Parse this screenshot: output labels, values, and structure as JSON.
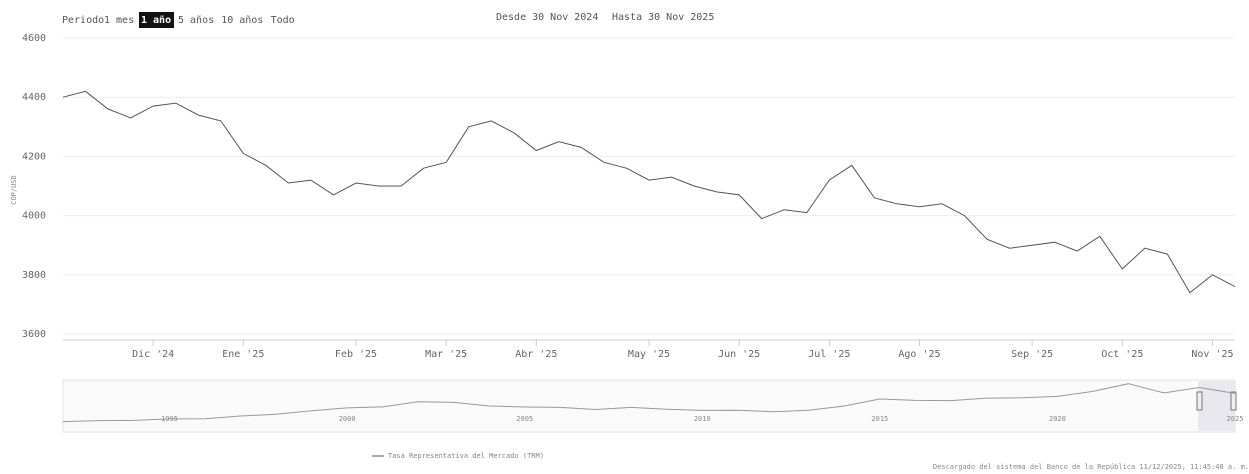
{
  "chart_data": {
    "type": "line",
    "period_label": "Periodo",
    "range_buttons": [
      "1 mes",
      "1 año",
      "5 años",
      "10 años",
      "Todo"
    ],
    "selected_button": 1,
    "from_label": "Desde 30 Nov 2024",
    "to_label": "Hasta 30 Nov 2025",
    "y_axis_label": "COP/USD",
    "ylim": [
      3600,
      4600
    ],
    "yticks": [
      3600,
      3800,
      4000,
      4200,
      4400,
      4600
    ],
    "grid": true,
    "categories": [
      null,
      null,
      null,
      null,
      "Dic '24",
      null,
      null,
      null,
      "Ene '25",
      null,
      null,
      null,
      null,
      "Feb '25",
      null,
      null,
      null,
      "Mar '25",
      null,
      null,
      null,
      "Abr '25",
      null,
      null,
      null,
      null,
      "May '25",
      null,
      null,
      null,
      "Jun '25",
      null,
      null,
      null,
      "Jul '25",
      null,
      null,
      null,
      "Ago '25",
      null,
      null,
      null,
      null,
      "Sep '25",
      null,
      null,
      null,
      "Oct '25",
      null,
      null,
      null,
      "Nov '25",
      null
    ],
    "series": [
      {
        "name": "Tasa Representativa del Mercado (TRM)",
        "color": "#555555",
        "values": [
          4400,
          4420,
          4360,
          4330,
          4370,
          4380,
          4340,
          4320,
          4210,
          4170,
          4110,
          4120,
          4070,
          4110,
          4100,
          4100,
          4160,
          4180,
          4300,
          4320,
          4280,
          4220,
          4250,
          4230,
          4180,
          4160,
          4120,
          4130,
          4100,
          4080,
          4070,
          3990,
          4020,
          4010,
          4120,
          4170,
          4060,
          4040,
          4030,
          4040,
          4000,
          3920,
          3890,
          3900,
          3910,
          3880,
          3930,
          3820,
          3890,
          3870,
          3740,
          3800,
          3760
        ]
      }
    ],
    "navigator": {
      "categories": [
        null,
        null,
        null,
        "1995",
        null,
        null,
        null,
        null,
        "2000",
        null,
        null,
        null,
        null,
        "2005",
        null,
        null,
        null,
        null,
        "2010",
        null,
        null,
        null,
        null,
        "2015",
        null,
        null,
        null,
        null,
        "2020",
        null,
        null,
        null,
        null,
        "2025"
      ],
      "values": [
        700,
        800,
        830,
        990,
        1010,
        1300,
        1500,
        1870,
        2190,
        2290,
        2860,
        2780,
        2390,
        2280,
        2240,
        2010,
        2240,
        2040,
        1910,
        1940,
        1770,
        1930,
        2390,
        3150,
        3000,
        2980,
        3250,
        3280,
        3430,
        3980,
        4810,
        3820,
        4400,
        3760
      ],
      "ylim": [
        0,
        5000
      ]
    },
    "footer": "Descargado del sistema del Banco de la República 11/12/2025, 11:45:48 a. m."
  }
}
